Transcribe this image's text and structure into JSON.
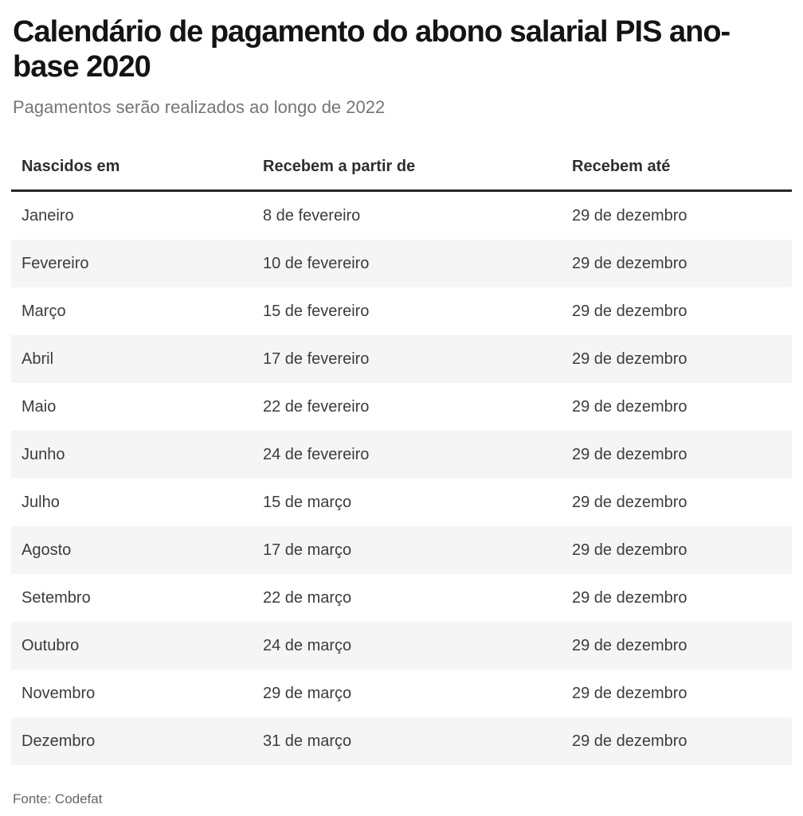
{
  "header": {
    "title": "Calendário de pagamento do abono salarial PIS ano-base 2020",
    "subtitle": "Pagamentos serão realizados ao longo de 2022"
  },
  "table": {
    "columns": [
      "Nascidos em",
      "Recebem a partir de",
      "Recebem até"
    ],
    "rows": [
      {
        "month": "Janeiro",
        "start": "8 de fevereiro",
        "end": "29 de dezembro"
      },
      {
        "month": "Fevereiro",
        "start": "10 de fevereiro",
        "end": "29 de dezembro"
      },
      {
        "month": "Março",
        "start": "15 de fevereiro",
        "end": "29 de dezembro"
      },
      {
        "month": "Abril",
        "start": "17 de fevereiro",
        "end": "29 de dezembro"
      },
      {
        "month": "Maio",
        "start": "22 de fevereiro",
        "end": "29 de dezembro"
      },
      {
        "month": "Junho",
        "start": "24 de fevereiro",
        "end": "29 de dezembro"
      },
      {
        "month": "Julho",
        "start": "15 de março",
        "end": "29 de dezembro"
      },
      {
        "month": "Agosto",
        "start": "17 de março",
        "end": "29 de dezembro"
      },
      {
        "month": "Setembro",
        "start": "22 de março",
        "end": "29 de dezembro"
      },
      {
        "month": "Outubro",
        "start": "24 de março",
        "end": "29 de dezembro"
      },
      {
        "month": "Novembro",
        "start": "29 de março",
        "end": "29 de dezembro"
      },
      {
        "month": "Dezembro",
        "start": "31 de março",
        "end": "29 de dezembro"
      }
    ]
  },
  "footer": {
    "source": "Fonte: Codefat"
  },
  "colors": {
    "title_text": "#141414",
    "subtitle_text": "#757575",
    "header_rule": "#262626",
    "cell_text": "#3c3c3c",
    "row_stripe": "#f5f5f5",
    "source_text": "#666666",
    "background": "#ffffff"
  },
  "chart_data": {
    "type": "table",
    "title": "Calendário de pagamento do abono salarial PIS ano-base 2020",
    "subtitle": "Pagamentos serão realizados ao longo de 2022",
    "source": "Fonte: Codefat",
    "columns": [
      "Nascidos em",
      "Recebem a partir de",
      "Recebem até"
    ],
    "rows": [
      [
        "Janeiro",
        "8 de fevereiro",
        "29 de dezembro"
      ],
      [
        "Fevereiro",
        "10 de fevereiro",
        "29 de dezembro"
      ],
      [
        "Março",
        "15 de fevereiro",
        "29 de dezembro"
      ],
      [
        "Abril",
        "17 de fevereiro",
        "29 de dezembro"
      ],
      [
        "Maio",
        "22 de fevereiro",
        "29 de dezembro"
      ],
      [
        "Junho",
        "24 de fevereiro",
        "29 de dezembro"
      ],
      [
        "Julho",
        "15 de março",
        "29 de dezembro"
      ],
      [
        "Agosto",
        "17 de março",
        "29 de dezembro"
      ],
      [
        "Setembro",
        "22 de março",
        "29 de dezembro"
      ],
      [
        "Outubro",
        "24 de março",
        "29 de dezembro"
      ],
      [
        "Novembro",
        "29 de março",
        "29 de dezembro"
      ],
      [
        "Dezembro",
        "31 de março",
        "29 de dezembro"
      ]
    ],
    "layout": {
      "zebra_stripes": true,
      "grid": false,
      "header_rule": true
    }
  }
}
